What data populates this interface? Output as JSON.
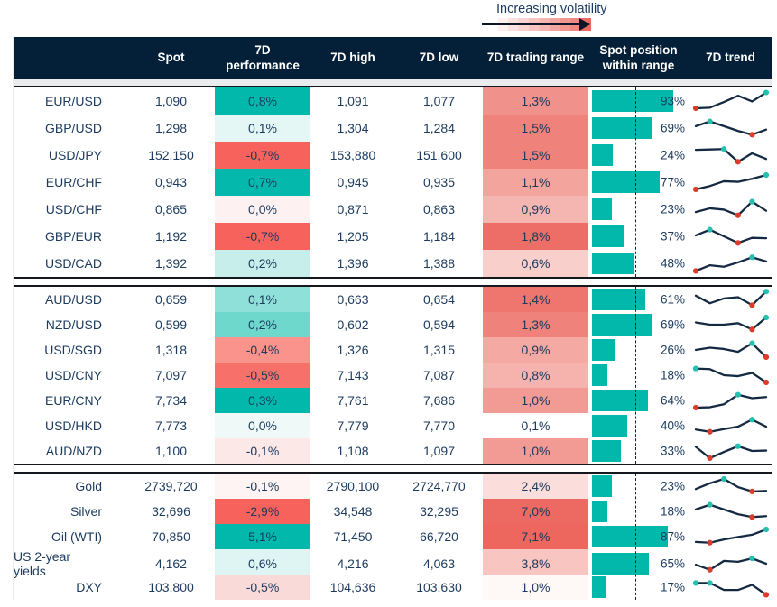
{
  "legend": {
    "label": "Increasing volatility"
  },
  "header": {
    "asset": "",
    "spot": "Spot",
    "performance": "7D performance",
    "high": "7D high",
    "low": "7D low",
    "range": "7D trading range",
    "position": "Spot position within range",
    "trend": "7D trend"
  },
  "colors": {
    "header_bg": "#041F38",
    "teal": "#01B8AA",
    "negative_red": "#F7625C",
    "text_navy": "#1B3A5E",
    "spark_line": "#142A42",
    "spark_min_dot": "#DE3B2B",
    "spark_max_dot": "#25C0AF"
  },
  "chart_data": {
    "type": "table",
    "columns": [
      "",
      "Spot",
      "7D performance",
      "7D high",
      "7D low",
      "7D trading range",
      "Spot position within range",
      "7D trend"
    ],
    "sections": [
      {
        "rows": [
          {
            "asset": "EUR/USD",
            "spot": "1,090",
            "performance": "0,8%",
            "performance_bg": "#01B8AA",
            "high": "1,091",
            "low": "1,077",
            "range": "1,3%",
            "range_bg": "#F0928B",
            "position_pct": 93,
            "position_label": "93%",
            "trend_points": [
              0.12,
              0.15,
              0.45,
              0.78,
              0.48,
              0.95
            ]
          },
          {
            "asset": "GBP/USD",
            "spot": "1,298",
            "performance": "0,1%",
            "performance_bg": "#E4F7F5",
            "high": "1,304",
            "low": "1,284",
            "range": "1,5%",
            "range_bg": "#EF827B",
            "position_pct": 69,
            "position_label": "69%",
            "trend_points": [
              0.6,
              0.85,
              0.6,
              0.35,
              0.15,
              0.42
            ]
          },
          {
            "asset": "USD/JPY",
            "spot": "152,150",
            "performance": "-0,7%",
            "performance_bg": "#F7625C",
            "high": "153,880",
            "low": "151,600",
            "range": "1,5%",
            "range_bg": "#EF827B",
            "position_pct": 24,
            "position_label": "24%",
            "trend_points": [
              0.78,
              0.8,
              0.82,
              0.15,
              0.6,
              0.3
            ]
          },
          {
            "asset": "EUR/CHF",
            "spot": "0,943",
            "performance": "0,7%",
            "performance_bg": "#04B9AB",
            "high": "0,945",
            "low": "0,935",
            "range": "1,1%",
            "range_bg": "#F3A49D",
            "position_pct": 77,
            "position_label": "77%",
            "trend_points": [
              0.12,
              0.3,
              0.55,
              0.52,
              0.68,
              0.88
            ]
          },
          {
            "asset": "USD/CHF",
            "spot": "0,865",
            "performance": "0,0%",
            "performance_bg": "#FDF2F1",
            "high": "0,871",
            "low": "0,863",
            "range": "0,9%",
            "range_bg": "#F5B6B1",
            "position_pct": 23,
            "position_label": "23%",
            "trend_points": [
              0.35,
              0.55,
              0.48,
              0.18,
              0.9,
              0.42
            ]
          },
          {
            "asset": "GBP/EUR",
            "spot": "1,192",
            "performance": "-0,7%",
            "performance_bg": "#F7625C",
            "high": "1,205",
            "low": "1,184",
            "range": "1,8%",
            "range_bg": "#ED6E66",
            "position_pct": 37,
            "position_label": "37%",
            "trend_points": [
              0.55,
              0.85,
              0.5,
              0.15,
              0.42,
              0.4
            ]
          },
          {
            "asset": "USD/CAD",
            "spot": "1,392",
            "performance": "0,2%",
            "performance_bg": "#C7EEEA",
            "high": "1,396",
            "low": "1,388",
            "range": "0,6%",
            "range_bg": "#F9CFCB",
            "position_pct": 48,
            "position_label": "48%",
            "trend_points": [
              0.1,
              0.4,
              0.32,
              0.55,
              0.82,
              0.6
            ]
          }
        ]
      },
      {
        "rows": [
          {
            "asset": "AUD/USD",
            "spot": "0,659",
            "performance": "0,1%",
            "performance_bg": "#8FE0D8",
            "high": "0,663",
            "low": "0,654",
            "range": "1,4%",
            "range_bg": "#EE766E",
            "position_pct": 61,
            "position_label": "61%",
            "trend_points": [
              0.7,
              0.3,
              0.55,
              0.62,
              0.2,
              0.92
            ]
          },
          {
            "asset": "NZD/USD",
            "spot": "0,599",
            "performance": "0,2%",
            "performance_bg": "#6FD8CD",
            "high": "0,602",
            "low": "0,594",
            "range": "1,3%",
            "range_bg": "#EF827B",
            "position_pct": 69,
            "position_label": "69%",
            "trend_points": [
              0.62,
              0.5,
              0.5,
              0.58,
              0.25,
              0.88
            ]
          },
          {
            "asset": "USD/SGD",
            "spot": "1,318",
            "performance": "-0,4%",
            "performance_bg": "#F9938B",
            "high": "1,326",
            "low": "1,315",
            "range": "0,9%",
            "range_bg": "#F5A9A3",
            "position_pct": 26,
            "position_label": "26%",
            "trend_points": [
              0.5,
              0.62,
              0.55,
              0.4,
              0.85,
              0.12
            ]
          },
          {
            "asset": "USD/CNY",
            "spot": "7,097",
            "performance": "-0,5%",
            "performance_bg": "#F7716A",
            "high": "7,143",
            "low": "7,087",
            "range": "0,8%",
            "range_bg": "#F6B3AD",
            "position_pct": 18,
            "position_label": "18%",
            "trend_points": [
              0.85,
              0.82,
              0.5,
              0.45,
              0.62,
              0.12
            ]
          },
          {
            "asset": "EUR/CNY",
            "spot": "7,734",
            "performance": "0,3%",
            "performance_bg": "#01B8AA",
            "high": "7,761",
            "low": "7,686",
            "range": "1,0%",
            "range_bg": "#F29B94",
            "position_pct": 64,
            "position_label": "64%",
            "trend_points": [
              0.12,
              0.14,
              0.3,
              0.8,
              0.62,
              0.68
            ]
          },
          {
            "asset": "USD/HKD",
            "spot": "7,773",
            "performance": "0,0%",
            "performance_bg": "#EFFAF8",
            "high": "7,779",
            "low": "7,770",
            "range": "0,1%",
            "range_bg": "#FFFFFF",
            "position_pct": 40,
            "position_label": "40%",
            "trend_points": [
              0.3,
              0.18,
              0.32,
              0.45,
              0.82,
              0.45
            ]
          },
          {
            "asset": "AUD/NZD",
            "spot": "1,100",
            "performance": "-0,1%",
            "performance_bg": "#FCE8E7",
            "high": "1,108",
            "low": "1,097",
            "range": "1,0%",
            "range_bg": "#F29B94",
            "position_pct": 33,
            "position_label": "33%",
            "trend_points": [
              0.72,
              0.12,
              0.45,
              0.75,
              0.5,
              0.52
            ]
          }
        ]
      },
      {
        "rows": [
          {
            "asset": "Gold",
            "spot": "2739,720",
            "performance": "-0,1%",
            "performance_bg": "#FDF4F3",
            "high": "2790,100",
            "low": "2724,770",
            "range": "2,4%",
            "range_bg": "#FBDEDC",
            "position_pct": 23,
            "position_label": "23%",
            "trend_points": [
              0.35,
              0.65,
              0.88,
              0.45,
              0.22,
              0.25
            ]
          },
          {
            "asset": "Silver",
            "spot": "32,696",
            "performance": "-2,9%",
            "performance_bg": "#F7625C",
            "high": "34,548",
            "low": "32,295",
            "range": "7,0%",
            "range_bg": "#ED6A62",
            "position_pct": 18,
            "position_label": "18%",
            "trend_points": [
              0.6,
              0.85,
              0.6,
              0.35,
              0.2,
              0.25
            ]
          },
          {
            "asset": "Oil (WTI)",
            "spot": "70,850",
            "performance": "5,1%",
            "performance_bg": "#01B8AA",
            "high": "71,450",
            "low": "66,720",
            "range": "7,1%",
            "range_bg": "#ED675F",
            "position_pct": 87,
            "position_label": "87%",
            "trend_points": [
              0.22,
              0.18,
              0.35,
              0.48,
              0.6,
              0.88
            ]
          },
          {
            "asset": "US 2-year yields",
            "spot": "4,162",
            "performance": "0,6%",
            "performance_bg": "#DEF5F3",
            "high": "4,216",
            "low": "4,063",
            "range": "3,8%",
            "range_bg": "#F8C5C1",
            "position_pct": 65,
            "position_label": "65%",
            "trend_points": [
              0.45,
              0.18,
              0.65,
              0.6,
              0.78,
              0.5
            ]
          },
          {
            "asset": "DXY",
            "spot": "103,800",
            "performance": "-0,5%",
            "performance_bg": "#FADAD8",
            "high": "104,636",
            "low": "103,630",
            "range": "1,0%",
            "range_bg": "#FEF8F7",
            "position_pct": 17,
            "position_label": "17%",
            "trend_points": [
              0.72,
              0.72,
              0.35,
              0.35,
              0.62,
              0.1
            ]
          }
        ]
      }
    ]
  }
}
